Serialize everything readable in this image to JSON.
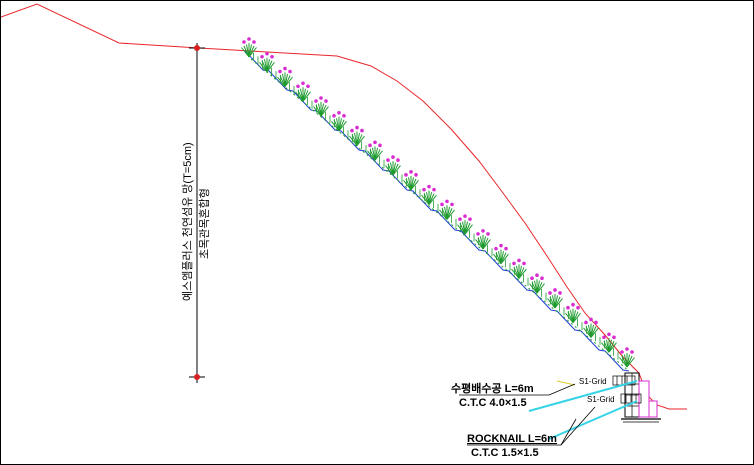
{
  "drawing": {
    "vertical_label_1": "예스엠플러스 천연섬유 망(T=5cm)",
    "vertical_label_2": "초목관목혼합형",
    "drain_label": "수평배수공 L=6m",
    "drain_ctc": "C.T.C 4.0×1.5",
    "rocknail_label": "ROCKNAIL L=6m",
    "rocknail_ctc": "C.T.C 1.5×1.5",
    "grid_upper": "S1-Grid",
    "grid_lower": "S1-Grid",
    "colors": {
      "ground": "#e8262b",
      "slope_line": "#1f3fd6",
      "anchor": "#35d3e6",
      "plant_green": "#1f9b2f",
      "flower": "#d82bd0",
      "node": "#d61f1f"
    }
  }
}
